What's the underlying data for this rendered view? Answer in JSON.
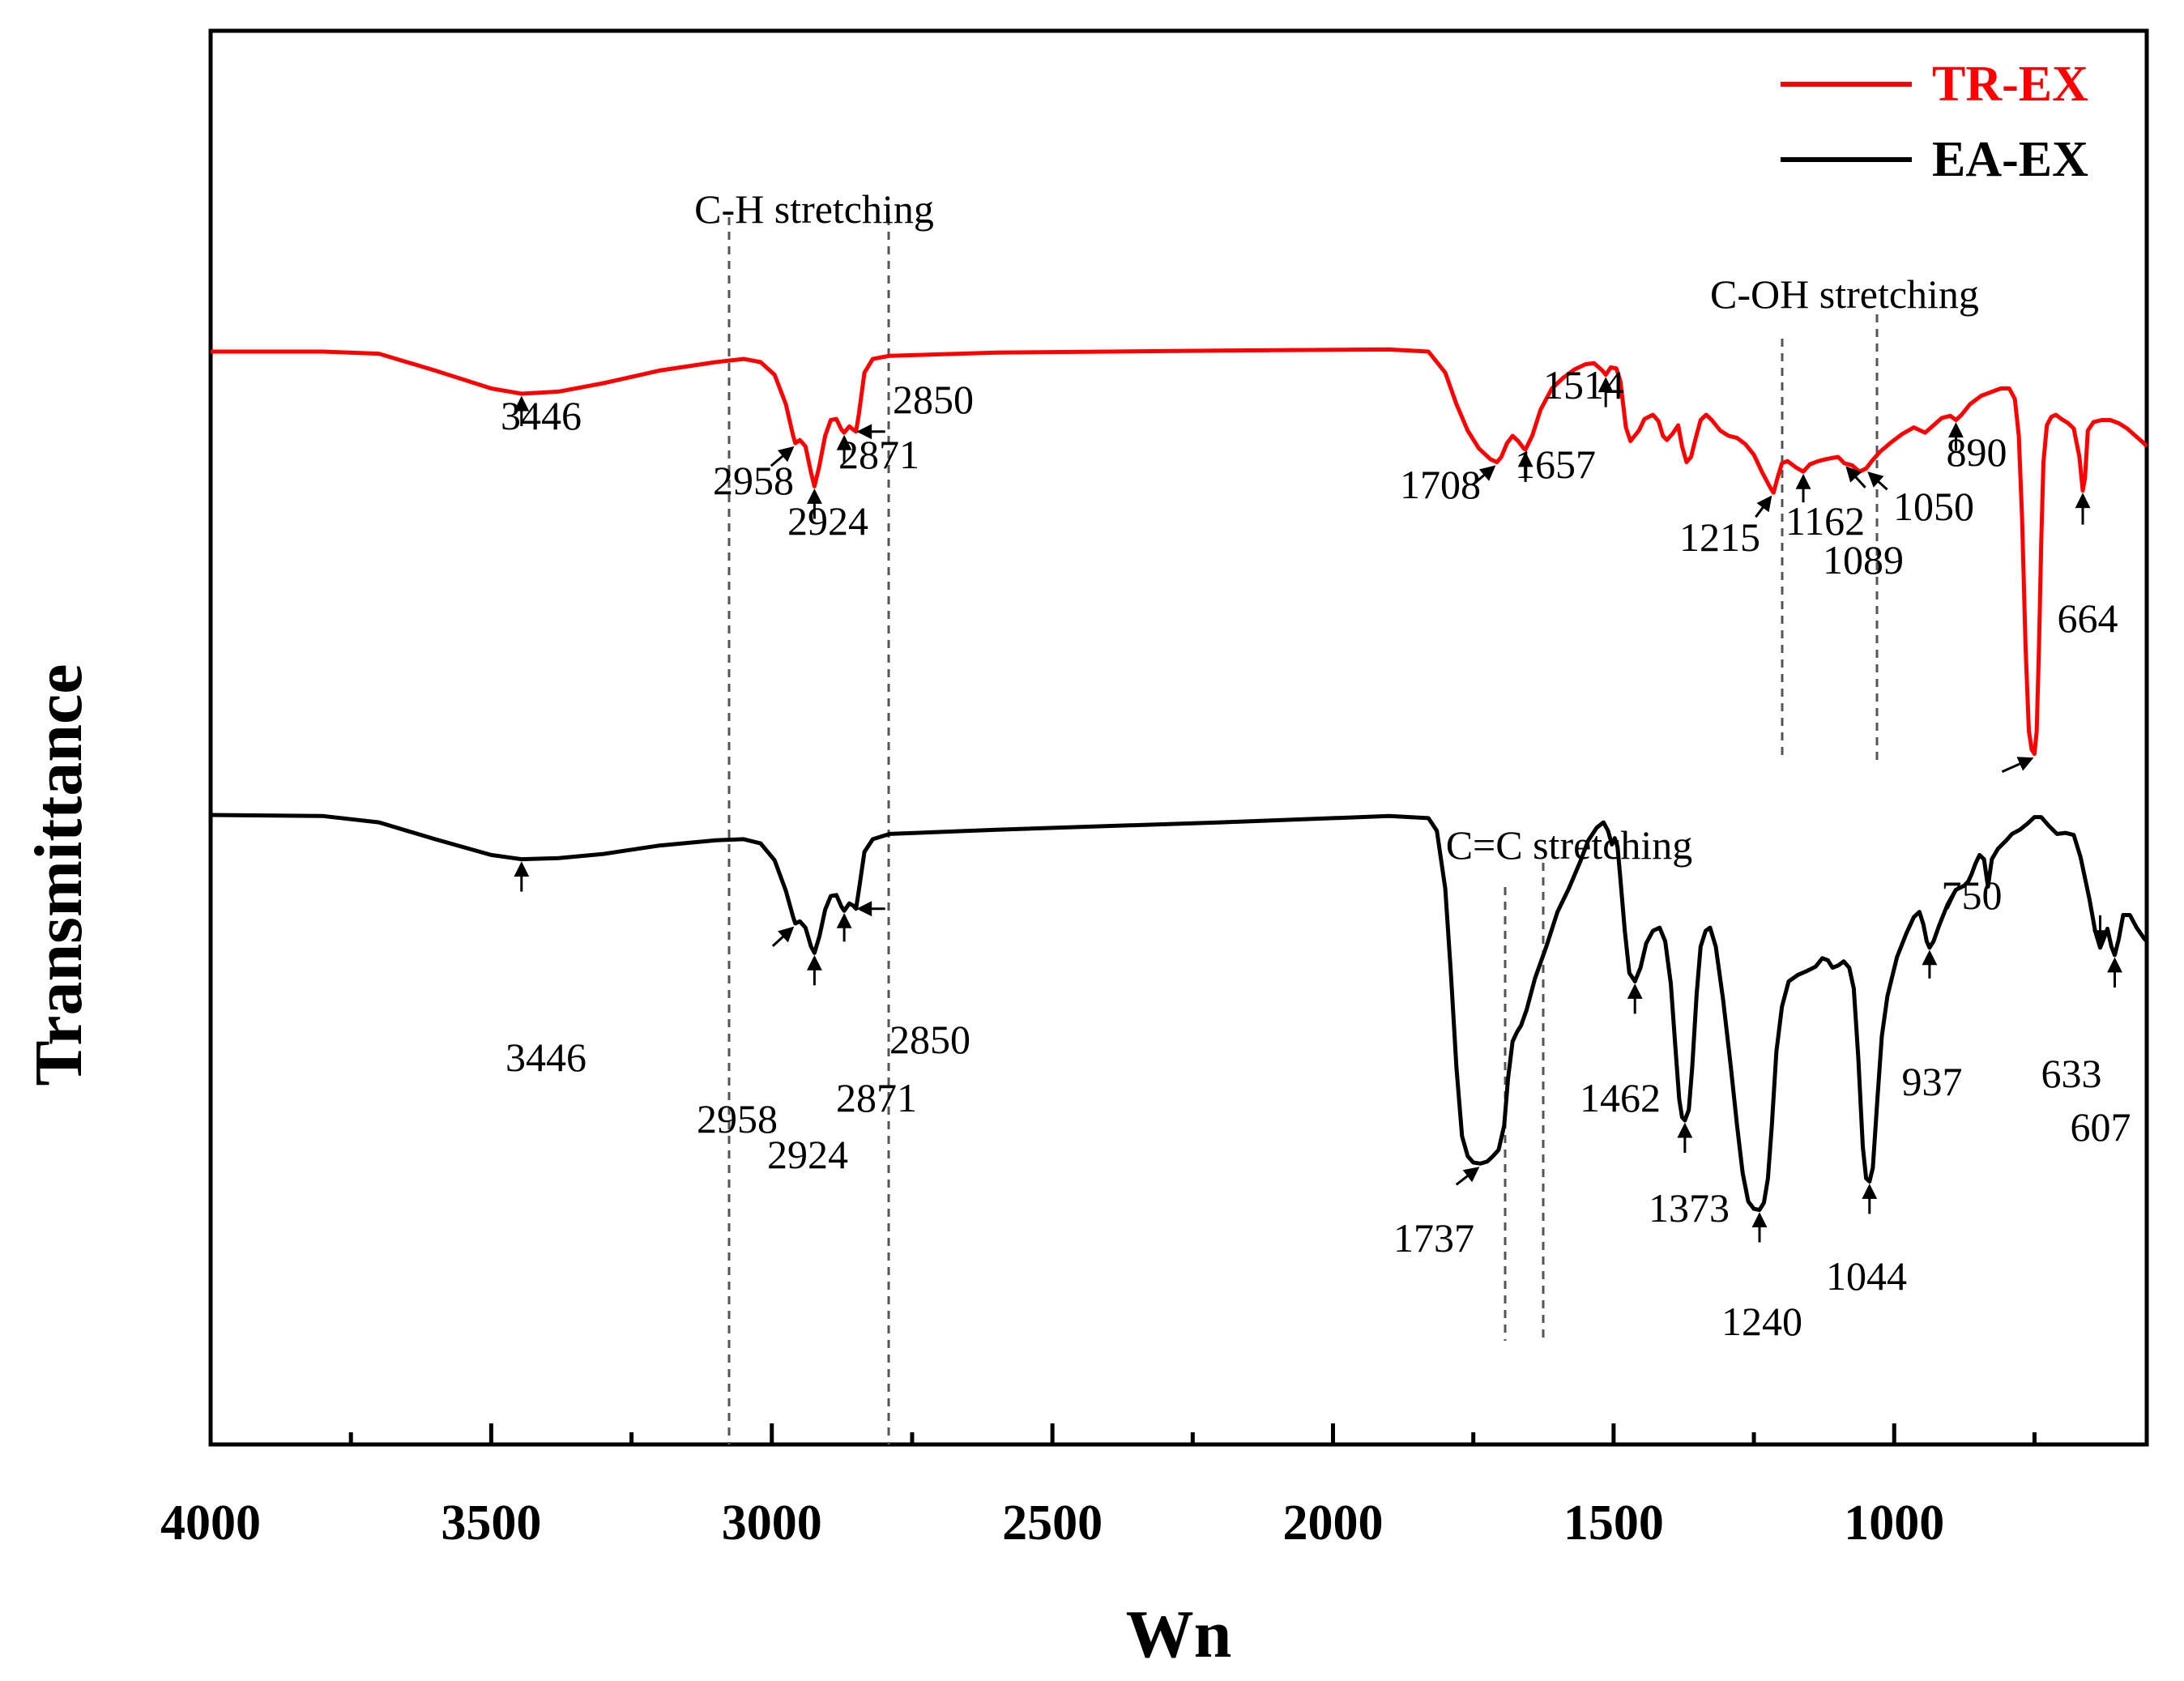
{
  "chart_data": {
    "type": "line",
    "title": "",
    "xlabel": "Wn",
    "ylabel": "Transmittance",
    "xlim": [
      4000,
      550
    ],
    "ylim": [
      0,
      100
    ],
    "x_ticks": [
      4000,
      3500,
      3000,
      2500,
      2000,
      1500,
      1000
    ],
    "x_tick_labels": [
      "4000",
      "3500",
      "3000",
      "2500",
      "2000",
      "1500",
      "1000"
    ],
    "legend": [
      "TR-EX",
      "EA-EX"
    ],
    "legend_position": "top-right",
    "series": [
      {
        "name": "TR-EX",
        "color": "#ff0000",
        "points": [
          [
            4000,
            82.0
          ],
          [
            3800,
            82.0
          ],
          [
            3700,
            81.8
          ],
          [
            3600,
            80.2
          ],
          [
            3500,
            78.5
          ],
          [
            3446,
            78.0
          ],
          [
            3380,
            78.2
          ],
          [
            3300,
            79.0
          ],
          [
            3200,
            80.2
          ],
          [
            3100,
            81.0
          ],
          [
            3050,
            81.3
          ],
          [
            3020,
            81.0
          ],
          [
            2995,
            79.8
          ],
          [
            2975,
            77.0
          ],
          [
            2962,
            74.0
          ],
          [
            2958,
            73.3
          ],
          [
            2950,
            73.6
          ],
          [
            2940,
            73.0
          ],
          [
            2930,
            70.5
          ],
          [
            2924,
            69.2
          ],
          [
            2915,
            71.2
          ],
          [
            2905,
            74.0
          ],
          [
            2895,
            75.5
          ],
          [
            2885,
            75.6
          ],
          [
            2876,
            74.6
          ],
          [
            2871,
            74.3
          ],
          [
            2862,
            74.9
          ],
          [
            2855,
            74.6
          ],
          [
            2850,
            74.4
          ],
          [
            2845,
            76.0
          ],
          [
            2835,
            80.0
          ],
          [
            2820,
            81.3
          ],
          [
            2790,
            81.6
          ],
          [
            2600,
            81.9
          ],
          [
            2200,
            82.1
          ],
          [
            1900,
            82.2
          ],
          [
            1830,
            82.0
          ],
          [
            1800,
            80.0
          ],
          [
            1780,
            77.0
          ],
          [
            1760,
            74.5
          ],
          [
            1740,
            72.8
          ],
          [
            1720,
            71.8
          ],
          [
            1708,
            71.5
          ],
          [
            1700,
            72.0
          ],
          [
            1690,
            73.3
          ],
          [
            1680,
            74.0
          ],
          [
            1670,
            73.5
          ],
          [
            1660,
            72.8
          ],
          [
            1657,
            72.7
          ],
          [
            1645,
            74.0
          ],
          [
            1630,
            76.5
          ],
          [
            1610,
            78.5
          ],
          [
            1590,
            79.5
          ],
          [
            1570,
            80.3
          ],
          [
            1550,
            80.8
          ],
          [
            1535,
            80.9
          ],
          [
            1520,
            80.2
          ],
          [
            1514,
            79.8
          ],
          [
            1505,
            80.5
          ],
          [
            1495,
            80.4
          ],
          [
            1488,
            79.2
          ],
          [
            1478,
            74.8
          ],
          [
            1470,
            73.5
          ],
          [
            1455,
            74.5
          ],
          [
            1445,
            75.6
          ],
          [
            1430,
            76.0
          ],
          [
            1420,
            75.4
          ],
          [
            1412,
            74.0
          ],
          [
            1405,
            73.6
          ],
          [
            1395,
            74.2
          ],
          [
            1385,
            75.0
          ],
          [
            1378,
            73.0
          ],
          [
            1370,
            71.5
          ],
          [
            1362,
            72.0
          ],
          [
            1355,
            73.5
          ],
          [
            1345,
            75.5
          ],
          [
            1335,
            76.0
          ],
          [
            1325,
            75.5
          ],
          [
            1310,
            74.5
          ],
          [
            1295,
            74.0
          ],
          [
            1280,
            73.8
          ],
          [
            1265,
            73.2
          ],
          [
            1250,
            72.2
          ],
          [
            1235,
            70.5
          ],
          [
            1220,
            69.0
          ],
          [
            1215,
            68.6
          ],
          [
            1208,
            70.0
          ],
          [
            1200,
            71.4
          ],
          [
            1190,
            71.6
          ],
          [
            1175,
            71.0
          ],
          [
            1162,
            70.6
          ],
          [
            1150,
            71.3
          ],
          [
            1135,
            71.6
          ],
          [
            1120,
            71.8
          ],
          [
            1100,
            72.0
          ],
          [
            1089,
            71.4
          ],
          [
            1075,
            71.2
          ],
          [
            1062,
            70.6
          ],
          [
            1050,
            70.9
          ],
          [
            1040,
            71.6
          ],
          [
            1025,
            72.5
          ],
          [
            1005,
            73.4
          ],
          [
            985,
            74.2
          ],
          [
            965,
            74.8
          ],
          [
            945,
            74.3
          ],
          [
            930,
            75.0
          ],
          [
            915,
            75.7
          ],
          [
            900,
            75.9
          ],
          [
            890,
            75.5
          ],
          [
            880,
            76.0
          ],
          [
            865,
            77.0
          ],
          [
            845,
            77.8
          ],
          [
            825,
            78.2
          ],
          [
            810,
            78.5
          ],
          [
            795,
            78.5
          ],
          [
            785,
            77.5
          ],
          [
            778,
            74.0
          ],
          [
            772,
            66.0
          ],
          [
            766,
            54.0
          ],
          [
            760,
            46.0
          ],
          [
            755,
            44.2
          ],
          [
            750,
            43.8
          ],
          [
            746,
            46.0
          ],
          [
            742,
            54.0
          ],
          [
            738,
            64.0
          ],
          [
            734,
            71.5
          ],
          [
            728,
            75.0
          ],
          [
            720,
            75.8
          ],
          [
            712,
            76.0
          ],
          [
            702,
            75.6
          ],
          [
            690,
            75.2
          ],
          [
            680,
            74.7
          ],
          [
            670,
            72.0
          ],
          [
            664,
            68.8
          ],
          [
            660,
            70.0
          ],
          [
            655,
            74.5
          ],
          [
            645,
            75.3
          ],
          [
            630,
            75.5
          ],
          [
            615,
            75.5
          ],
          [
            600,
            75.2
          ],
          [
            585,
            74.7
          ],
          [
            570,
            74.0
          ],
          [
            555,
            73.3
          ],
          [
            550,
            73.0
          ]
        ]
      },
      {
        "name": "EA-EX",
        "color": "#000000",
        "points": [
          [
            4000,
            38.0
          ],
          [
            3800,
            37.9
          ],
          [
            3700,
            37.3
          ],
          [
            3600,
            35.7
          ],
          [
            3500,
            34.2
          ],
          [
            3446,
            33.8
          ],
          [
            3380,
            33.9
          ],
          [
            3300,
            34.3
          ],
          [
            3200,
            35.1
          ],
          [
            3100,
            35.6
          ],
          [
            3050,
            35.7
          ],
          [
            3020,
            35.3
          ],
          [
            2995,
            33.7
          ],
          [
            2975,
            30.8
          ],
          [
            2962,
            28.3
          ],
          [
            2958,
            27.7
          ],
          [
            2950,
            27.9
          ],
          [
            2940,
            27.3
          ],
          [
            2930,
            25.5
          ],
          [
            2924,
            24.9
          ],
          [
            2915,
            26.5
          ],
          [
            2905,
            29.0
          ],
          [
            2895,
            30.3
          ],
          [
            2885,
            30.4
          ],
          [
            2876,
            29.3
          ],
          [
            2871,
            28.9
          ],
          [
            2862,
            29.6
          ],
          [
            2855,
            29.4
          ],
          [
            2850,
            29.1
          ],
          [
            2845,
            30.8
          ],
          [
            2835,
            34.5
          ],
          [
            2820,
            35.7
          ],
          [
            2790,
            36.2
          ],
          [
            2600,
            36.6
          ],
          [
            2200,
            37.3
          ],
          [
            1900,
            37.9
          ],
          [
            1830,
            37.7
          ],
          [
            1815,
            36.5
          ],
          [
            1800,
            31.0
          ],
          [
            1790,
            23.0
          ],
          [
            1780,
            14.0
          ],
          [
            1770,
            7.5
          ],
          [
            1760,
            5.6
          ],
          [
            1750,
            5.0
          ],
          [
            1737,
            4.9
          ],
          [
            1725,
            5.1
          ],
          [
            1715,
            5.6
          ],
          [
            1705,
            6.2
          ],
          [
            1695,
            8.5
          ],
          [
            1688,
            13.0
          ],
          [
            1680,
            16.5
          ],
          [
            1672,
            17.4
          ],
          [
            1665,
            18.0
          ],
          [
            1655,
            19.5
          ],
          [
            1640,
            22.5
          ],
          [
            1620,
            25.5
          ],
          [
            1600,
            28.8
          ],
          [
            1580,
            31.0
          ],
          [
            1560,
            33.5
          ],
          [
            1545,
            35.6
          ],
          [
            1530,
            36.8
          ],
          [
            1518,
            37.3
          ],
          [
            1510,
            36.5
          ],
          [
            1503,
            35.2
          ],
          [
            1498,
            35.8
          ],
          [
            1493,
            35.0
          ],
          [
            1488,
            32.0
          ],
          [
            1480,
            27.0
          ],
          [
            1472,
            23.0
          ],
          [
            1462,
            22.2
          ],
          [
            1452,
            23.5
          ],
          [
            1442,
            25.8
          ],
          [
            1430,
            27.0
          ],
          [
            1418,
            27.3
          ],
          [
            1408,
            26.0
          ],
          [
            1398,
            22.0
          ],
          [
            1390,
            16.0
          ],
          [
            1383,
            11.0
          ],
          [
            1378,
            9.3
          ],
          [
            1373,
            9.0
          ],
          [
            1366,
            10.0
          ],
          [
            1360,
            14.0
          ],
          [
            1352,
            21.0
          ],
          [
            1345,
            25.5
          ],
          [
            1336,
            27.0
          ],
          [
            1328,
            27.3
          ],
          [
            1318,
            25.5
          ],
          [
            1305,
            20.5
          ],
          [
            1292,
            14.5
          ],
          [
            1280,
            8.5
          ],
          [
            1270,
            4.0
          ],
          [
            1260,
            1.3
          ],
          [
            1250,
            0.6
          ],
          [
            1240,
            0.5
          ],
          [
            1232,
            1.2
          ],
          [
            1225,
            3.5
          ],
          [
            1218,
            8.5
          ],
          [
            1210,
            15.5
          ],
          [
            1200,
            19.8
          ],
          [
            1188,
            22.2
          ],
          [
            1172,
            22.8
          ],
          [
            1155,
            23.2
          ],
          [
            1140,
            23.6
          ],
          [
            1128,
            24.4
          ],
          [
            1118,
            24.2
          ],
          [
            1110,
            23.5
          ],
          [
            1100,
            23.7
          ],
          [
            1090,
            24.1
          ],
          [
            1080,
            23.5
          ],
          [
            1072,
            21.5
          ],
          [
            1064,
            15.0
          ],
          [
            1056,
            6.5
          ],
          [
            1050,
            3.5
          ],
          [
            1044,
            3.2
          ],
          [
            1038,
            4.5
          ],
          [
            1030,
            11.0
          ],
          [
            1022,
            17.0
          ],
          [
            1012,
            20.8
          ],
          [
            995,
            24.5
          ],
          [
            978,
            26.8
          ],
          [
            965,
            28.3
          ],
          [
            955,
            28.8
          ],
          [
            948,
            27.6
          ],
          [
            942,
            26.0
          ],
          [
            937,
            25.4
          ],
          [
            930,
            26.0
          ],
          [
            920,
            27.5
          ],
          [
            905,
            29.5
          ],
          [
            890,
            30.9
          ],
          [
            875,
            31.3
          ],
          [
            868,
            31.7
          ],
          [
            862,
            32.4
          ],
          [
            855,
            33.4
          ],
          [
            848,
            34.2
          ],
          [
            840,
            33.8
          ],
          [
            833,
            31.2
          ],
          [
            826,
            33.8
          ],
          [
            815,
            34.8
          ],
          [
            800,
            35.6
          ],
          [
            790,
            36.2
          ],
          [
            776,
            36.6
          ],
          [
            762,
            37.2
          ],
          [
            750,
            37.8
          ],
          [
            738,
            37.8
          ],
          [
            725,
            37.0
          ],
          [
            710,
            36.2
          ],
          [
            695,
            36.3
          ],
          [
            680,
            36.1
          ],
          [
            668,
            34.0
          ],
          [
            660,
            32.0
          ],
          [
            652,
            30.0
          ],
          [
            642,
            27.0
          ],
          [
            633,
            25.4
          ],
          [
            627,
            26.2
          ],
          [
            620,
            27.2
          ],
          [
            613,
            25.5
          ],
          [
            607,
            24.7
          ],
          [
            600,
            26.2
          ],
          [
            592,
            28.5
          ],
          [
            580,
            28.5
          ],
          [
            568,
            27.3
          ],
          [
            555,
            26.3
          ],
          [
            550,
            26.0
          ]
        ]
      }
    ],
    "peak_labels": {
      "TR-EX": [
        "3446",
        "2958",
        "2924",
        "2871",
        "2850",
        "1708",
        "1657",
        "1514",
        "1215",
        "1162",
        "1089",
        "1050",
        "890",
        "750",
        "664"
      ],
      "EA-EX": [
        "3446",
        "2958",
        "2924",
        "2871",
        "2850",
        "1737",
        "1462",
        "1373",
        "1240",
        "1044",
        "937",
        "633",
        "607"
      ]
    },
    "region_annotations": [
      "C-H stretching",
      "C-OH stretching",
      "C=C stretching"
    ]
  }
}
